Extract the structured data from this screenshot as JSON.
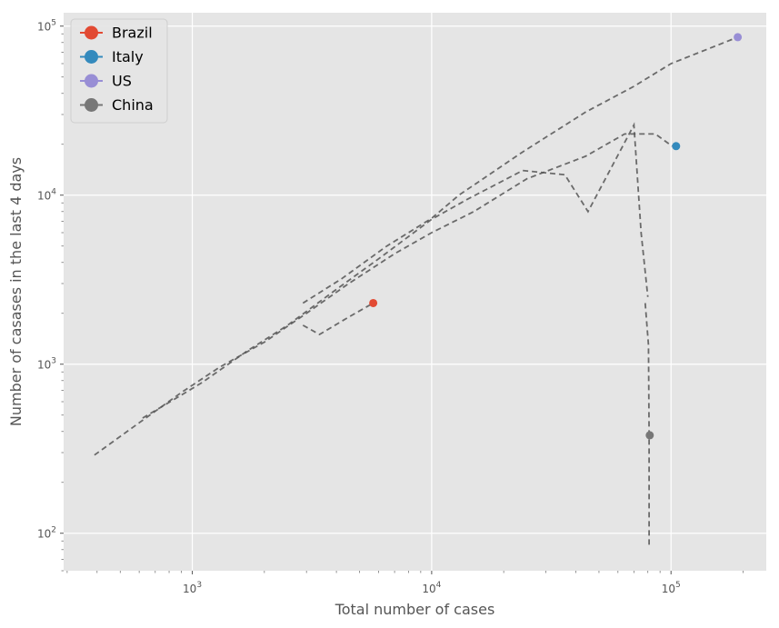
{
  "chart_data": {
    "type": "line",
    "title": "",
    "xlabel": "Total number of cases",
    "ylabel": "Number of casases in the last 4 days",
    "xscale": "log",
    "yscale": "log",
    "xlim": [
      290,
      250000
    ],
    "ylim": [
      60,
      120000
    ],
    "grid": true,
    "legend": "top-left",
    "x_ticks": [
      {
        "value": 1000,
        "base": "10",
        "exp": "3"
      },
      {
        "value": 10000,
        "base": "10",
        "exp": "4"
      },
      {
        "value": 100000,
        "base": "10",
        "exp": "5"
      }
    ],
    "y_ticks": [
      {
        "value": 100,
        "base": "10",
        "exp": "2"
      },
      {
        "value": 1000,
        "base": "10",
        "exp": "3"
      },
      {
        "value": 10000,
        "base": "10",
        "exp": "4"
      },
      {
        "value": 100000,
        "base": "10",
        "exp": "5"
      }
    ],
    "series": [
      {
        "name": "Brazil",
        "color": "#E24A33",
        "line_color": "#555555",
        "points": [
          {
            "x": 2900,
            "y": 1700
          },
          {
            "x": 3400,
            "y": 1500
          },
          {
            "x": 4500,
            "y": 1900
          },
          {
            "x": 5700,
            "y": 2300
          }
        ],
        "latest": {
          "x": 5700,
          "y": 2300
        }
      },
      {
        "name": "Italy",
        "color": "#348ABD",
        "line_color": "#555555",
        "points": [
          {
            "x": 620,
            "y": 480
          },
          {
            "x": 890,
            "y": 650
          },
          {
            "x": 1100,
            "y": 780
          },
          {
            "x": 1700,
            "y": 1200
          },
          {
            "x": 2500,
            "y": 1700
          },
          {
            "x": 3900,
            "y": 2700
          },
          {
            "x": 6000,
            "y": 4200
          },
          {
            "x": 10000,
            "y": 7200
          },
          {
            "x": 14000,
            "y": 9400
          },
          {
            "x": 24000,
            "y": 14000
          },
          {
            "x": 36000,
            "y": 13200
          },
          {
            "x": 45000,
            "y": 8000
          },
          {
            "x": 70000,
            "y": 26000
          },
          {
            "x": 75000,
            "y": 6000
          },
          {
            "x": 80000,
            "y": 2500
          }
        ],
        "latest": {
          "x": 105000,
          "y": 19500
        }
      },
      {
        "name": "US",
        "color": "#988ED5",
        "line_color": "#555555",
        "points": [
          {
            "x": 390,
            "y": 290
          },
          {
            "x": 600,
            "y": 450
          },
          {
            "x": 900,
            "y": 680
          },
          {
            "x": 1300,
            "y": 960
          },
          {
            "x": 2000,
            "y": 1350
          },
          {
            "x": 3000,
            "y": 2000
          },
          {
            "x": 4500,
            "y": 3000
          },
          {
            "x": 7000,
            "y": 4500
          },
          {
            "x": 10000,
            "y": 6000
          },
          {
            "x": 15000,
            "y": 8000
          },
          {
            "x": 25000,
            "y": 12500
          },
          {
            "x": 44000,
            "y": 17000
          },
          {
            "x": 64000,
            "y": 23000
          },
          {
            "x": 86000,
            "y": 23000
          },
          {
            "x": 101000,
            "y": 19500
          }
        ],
        "latest": {
          "x": 190000,
          "y": 86000
        }
      },
      {
        "name": "China",
        "color": "#777777",
        "line_color": "#555555",
        "points": [
          {
            "x": 2900,
            "y": 2300
          },
          {
            "x": 4200,
            "y": 3200
          },
          {
            "x": 6500,
            "y": 5000
          },
          {
            "x": 10000,
            "y": 7300
          },
          {
            "x": 13000,
            "y": 10000
          },
          {
            "x": 24000,
            "y": 18000
          },
          {
            "x": 44000,
            "y": 31000
          },
          {
            "x": 70000,
            "y": 44000
          },
          {
            "x": 100000,
            "y": 60000
          },
          {
            "x": 190000,
            "y": 86000
          }
        ],
        "tail": [
          {
            "x": 78000,
            "y": 2300
          },
          {
            "x": 80500,
            "y": 1300
          },
          {
            "x": 81000,
            "y": 380
          },
          {
            "x": 81000,
            "y": 82
          }
        ],
        "latest": {
          "x": 81500,
          "y": 380
        }
      }
    ]
  }
}
